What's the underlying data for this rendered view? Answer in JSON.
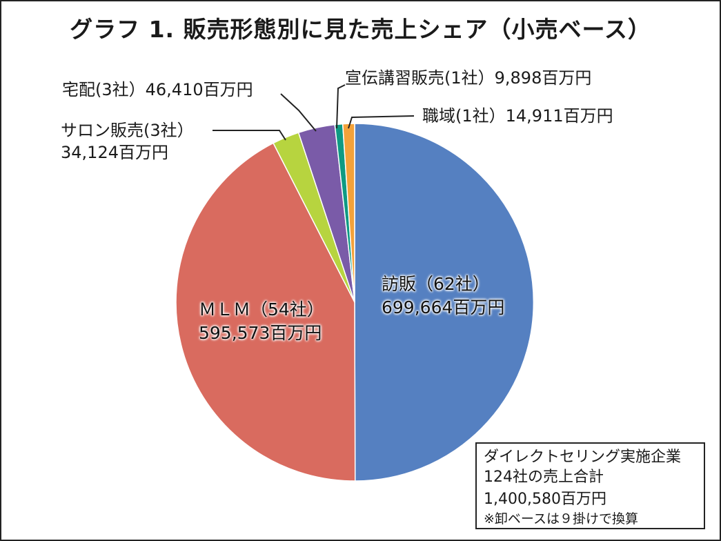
{
  "title": "グラフ 1. 販売形態別に見た売上シェア（小売ベース）",
  "chart_data": {
    "type": "pie",
    "title": "グラフ 1. 販売形態別に見た売上シェア（小売ベース）",
    "start_angle_deg": 0,
    "direction": "clockwise",
    "unit": "百万円",
    "slices": [
      {
        "key": "houhan",
        "name": "訪販",
        "companies": "（62社）",
        "value": 699664,
        "value_label": "699,664百万円",
        "color": "#5580c1"
      },
      {
        "key": "mlm",
        "name": "ＭＬＭ",
        "companies": "（54社）",
        "value": 595573,
        "value_label": "595,573百万円",
        "color": "#d96b5f"
      },
      {
        "key": "salon",
        "name": "サロン販売",
        "companies": "(3社）",
        "value": 34124,
        "value_label": "34,124百万円",
        "color": "#b7d43f"
      },
      {
        "key": "takuhai",
        "name": "宅配",
        "companies": "(3社）",
        "value": 46410,
        "value_label": "46,410百万円",
        "color": "#7a5ba8"
      },
      {
        "key": "senden",
        "name": "宣伝講習販売",
        "companies": "(1社）",
        "value": 9898,
        "value_label": "9,898百万円",
        "color": "#0e9a83"
      },
      {
        "key": "shokuiki",
        "name": "職域",
        "companies": "(1社）",
        "value": 14911,
        "value_label": "14,911百万円",
        "color": "#f3a23a"
      }
    ]
  },
  "labels": {
    "houhan": {
      "line1": "訪販（62社）",
      "line2": "699,664百万円"
    },
    "mlm": {
      "line1": "ＭＬＭ（54社）",
      "line2": "595,573百万円"
    },
    "salon": {
      "line1": "サロン販売(3社）",
      "line2": "34,124百万円"
    },
    "takuhai": {
      "line1": "宅配(3社）46,410百万円"
    },
    "senden": {
      "line1": "宣伝講習販売(1社）9,898百万円"
    },
    "shokuiki": {
      "line1": "職域(1社）14,911百万円"
    }
  },
  "note": {
    "line1": "ダイレクトセリング実施企業",
    "line2": "124社の売上合計",
    "line3": "1,400,580百万円",
    "line4": "※卸ベースは９掛けで換算"
  },
  "colors": {
    "frame": "#222222",
    "leader": "#222222",
    "background": "#ffffff"
  }
}
